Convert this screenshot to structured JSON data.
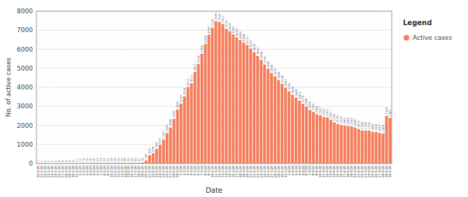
{
  "chart_data": {
    "type": "bar",
    "xlabel": "Date",
    "ylabel": "No. of active cases",
    "legend_title": "Legend",
    "legend": "right",
    "grid": true,
    "data_labels": true,
    "ylim": [
      0,
      8000
    ],
    "yticks": [
      0,
      1000,
      2000,
      3000,
      4000,
      5000,
      6000,
      7000,
      8000
    ],
    "categories": [
      "20/1/20",
      "21/1/20",
      "22/1/20",
      "23/1/20",
      "24/1/20",
      "25/1/20",
      "26/1/20",
      "27/1/20",
      "28/1/20",
      "29/1/20",
      "30/1/20",
      "31/1/20",
      "1/2/20",
      "2/2/20",
      "3/2/20",
      "4/2/20",
      "5/2/20",
      "6/2/20",
      "7/2/20",
      "8/2/20",
      "9/2/20",
      "10/2/20",
      "11/2/20",
      "12/2/20",
      "13/2/20",
      "14/2/20",
      "15/2/20",
      "16/2/20",
      "17/2/20",
      "18/2/20",
      "19/2/20",
      "20/2/20",
      "21/2/20",
      "22/2/20",
      "23/2/20",
      "24/2/20",
      "25/2/20",
      "26/2/20",
      "27/2/20",
      "28/2/20",
      "29/2/20",
      "1/3/20",
      "2/3/20",
      "3/3/20",
      "4/3/20",
      "5/3/20",
      "6/3/20",
      "7/3/20",
      "8/3/20",
      "9/3/20",
      "10/3/20",
      "11/3/20",
      "12/3/20",
      "13/3/20",
      "14/3/20",
      "15/3/20",
      "16/3/20",
      "17/3/20",
      "18/3/20",
      "19/3/20",
      "20/3/20",
      "21/3/20",
      "22/3/20",
      "23/3/20",
      "24/3/20",
      "25/3/20",
      "26/3/20",
      "27/3/20",
      "28/3/20",
      "29/3/20",
      "30/3/20",
      "31/3/20",
      "1/4/20",
      "2/4/20",
      "3/4/20",
      "4/4/20",
      "5/4/20",
      "6/4/20",
      "7/4/20",
      "8/4/20",
      "9/4/20",
      "10/4/20",
      "11/4/20",
      "12/4/20",
      "13/4/20",
      "14/4/20",
      "15/4/20",
      "16/4/20",
      "17/4/20",
      "18/4/20",
      "19/4/20",
      "20/4/20",
      "21/4/20",
      "22/4/20",
      "23/4/20",
      "24/4/20",
      "25/4/20",
      "26/4/20",
      "27/4/20",
      "28/4/20",
      "29/4/20",
      "30/4/20"
    ],
    "series": [
      {
        "name": "Active cases",
        "color": "#F47C5A",
        "values": [
          1,
          1,
          2,
          2,
          2,
          2,
          3,
          4,
          4,
          4,
          4,
          11,
          12,
          15,
          15,
          16,
          19,
          23,
          24,
          27,
          27,
          28,
          28,
          28,
          28,
          28,
          29,
          29,
          30,
          31,
          52,
          156,
          433,
          546,
          763,
          977,
          1261,
          1595,
          1896,
          2337,
          2832,
          3150,
          3526,
          4012,
          4212,
          4812,
          5228,
          5766,
          6284,
          6767,
          7134,
          7470,
          7434,
          7322,
          7073,
          6945,
          6781,
          6626,
          6484,
          6356,
          6227,
          6037,
          5847,
          5652,
          5446,
          5199,
          4981,
          4749,
          4577,
          4384,
          4186,
          3992,
          3795,
          3609,
          3460,
          3304,
          3130,
          2986,
          2808,
          2704,
          2584,
          2527,
          2437,
          2422,
          2301,
          2159,
          2076,
          2020,
          1981,
          1963,
          1945,
          1889,
          1810,
          1736,
          1728,
          1726,
          1662,
          1652,
          1607,
          1584,
          2500,
          2385
        ]
      }
    ]
  }
}
